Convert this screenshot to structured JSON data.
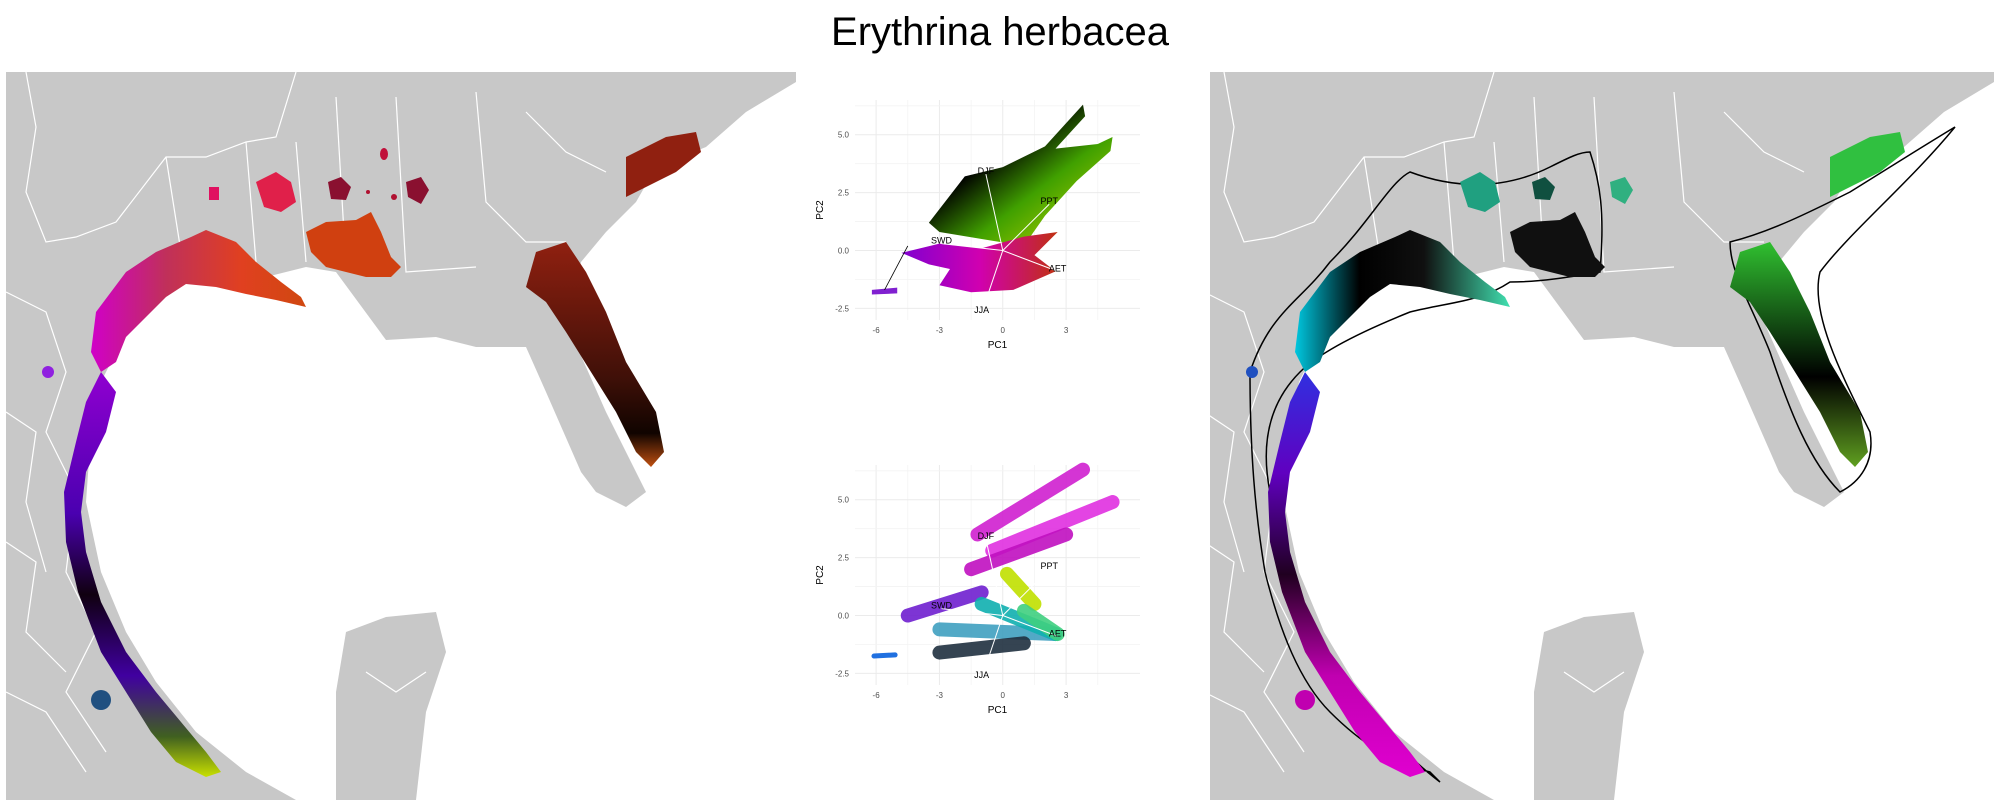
{
  "figure": {
    "title": "Erythrina herbacea"
  },
  "panels": {
    "left_map": {
      "description_type": "map"
    },
    "right_map": {
      "description_type": "map"
    }
  },
  "colors": {
    "land": "#c8c8c8",
    "borders": "#ffffff",
    "hull": "#000000",
    "grid": "#ebebeb"
  },
  "chart_data": [
    {
      "type": "scatter",
      "id": "pca-top",
      "xlabel": "PC1",
      "ylabel": "PC2",
      "xlim": [
        -7,
        6.5
      ],
      "ylim": [
        -3,
        6.5
      ],
      "xticks": [
        -6,
        -3,
        0,
        3
      ],
      "yticks": [
        -2.5,
        0.0,
        2.5,
        5.0
      ],
      "xtick_labels": [
        "-6",
        "-3",
        "0",
        "3"
      ],
      "ytick_labels": [
        "-2.5",
        "0.0",
        "2.5",
        "5.0"
      ],
      "grid": true,
      "loadings": [
        {
          "label": "DJF",
          "x": -0.8,
          "y": 3.3
        },
        {
          "label": "PPT",
          "x": 2.2,
          "y": 2.0
        },
        {
          "label": "SWD",
          "x": -2.9,
          "y": 0.3
        },
        {
          "label": "AET",
          "x": 2.6,
          "y": -0.9
        },
        {
          "label": "JJA",
          "x": -1.0,
          "y": -2.7
        }
      ]
    },
    {
      "type": "scatter",
      "id": "pca-bottom",
      "xlabel": "PC1",
      "ylabel": "PC2",
      "xlim": [
        -7,
        6.5
      ],
      "ylim": [
        -3,
        6.5
      ],
      "xticks": [
        -6,
        -3,
        0,
        3
      ],
      "yticks": [
        -2.5,
        0.0,
        2.5,
        5.0
      ],
      "xtick_labels": [
        "-6",
        "-3",
        "0",
        "3"
      ],
      "ytick_labels": [
        "-2.5",
        "0.0",
        "2.5",
        "5.0"
      ],
      "grid": true,
      "loadings": [
        {
          "label": "DJF",
          "x": -0.8,
          "y": 3.3
        },
        {
          "label": "PPT",
          "x": 2.2,
          "y": 2.0
        },
        {
          "label": "SWD",
          "x": -2.9,
          "y": 0.3
        },
        {
          "label": "AET",
          "x": 2.6,
          "y": -0.9
        },
        {
          "label": "JJA",
          "x": -1.0,
          "y": -2.7
        }
      ]
    }
  ]
}
